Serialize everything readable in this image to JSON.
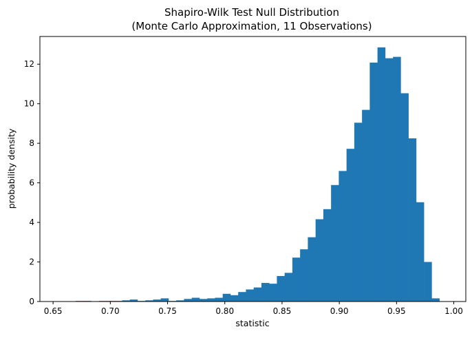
{
  "chart_data": {
    "type": "bar",
    "subtype": "histogram",
    "title_line1": "Shapiro-Wilk Test Null Distribution",
    "title_line2": "(Monte Carlo Approximation, 11 Observations)",
    "xlabel": "statistic",
    "ylabel": "probability density",
    "xlim": [
      0.6385,
      1.0105
    ],
    "ylim": [
      0,
      13.4
    ],
    "xticks": [
      "0.65",
      "0.70",
      "0.75",
      "0.80",
      "0.85",
      "0.90",
      "0.95",
      "1.00"
    ],
    "xtick_values": [
      0.65,
      0.7,
      0.75,
      0.8,
      0.85,
      0.9,
      0.95,
      1.0
    ],
    "yticks": [
      "0",
      "2",
      "4",
      "6",
      "8",
      "10",
      "12"
    ],
    "ytick_values": [
      0,
      2,
      4,
      6,
      8,
      10,
      12
    ],
    "bin_start": 0.6562,
    "bin_width": 0.00676,
    "values": [
      0.0,
      0.0,
      0.03,
      0.03,
      0.0,
      0.03,
      0.03,
      0.03,
      0.06,
      0.1,
      0.03,
      0.06,
      0.1,
      0.16,
      0.03,
      0.06,
      0.13,
      0.19,
      0.13,
      0.16,
      0.19,
      0.39,
      0.32,
      0.48,
      0.61,
      0.71,
      0.94,
      0.9,
      1.29,
      1.45,
      2.22,
      2.64,
      3.25,
      4.16,
      4.67,
      5.89,
      6.6,
      7.72,
      9.04,
      9.69,
      12.08,
      12.85,
      12.3,
      12.37,
      10.53,
      8.25,
      5.02,
      2.0,
      0.16
    ],
    "bar_color": "#1f77b4",
    "grid": false,
    "legend": "none"
  }
}
